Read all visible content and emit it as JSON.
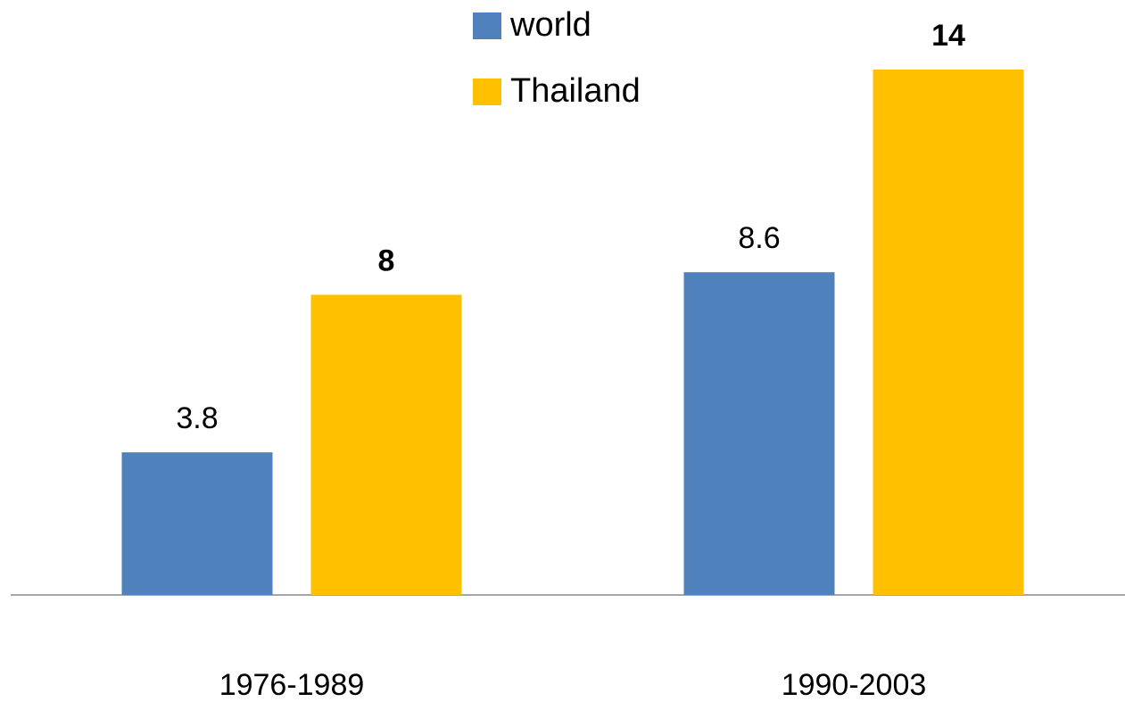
{
  "chart_data": {
    "type": "bar",
    "categories": [
      "1976-1989",
      "1990-2003"
    ],
    "series": [
      {
        "name": "world",
        "color": "#4f81bd",
        "values": [
          3.8,
          8.6
        ],
        "bold_labels": false
      },
      {
        "name": "Thailand",
        "color": "#ffc000",
        "values": [
          8,
          14
        ],
        "bold_labels": true
      }
    ],
    "ylim": [
      0,
      14
    ],
    "legend": "top"
  }
}
